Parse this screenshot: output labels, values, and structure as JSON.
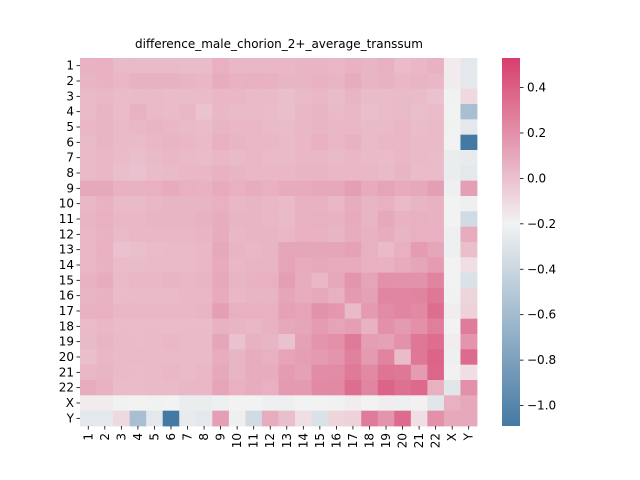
{
  "chart_data": {
    "type": "heatmap",
    "title": "difference_male_chorion_2+_average_transsum",
    "xlabel": "",
    "ylabel": "",
    "row_labels": [
      "1",
      "2",
      "3",
      "4",
      "5",
      "6",
      "7",
      "8",
      "9",
      "10",
      "11",
      "12",
      "13",
      "14",
      "15",
      "16",
      "17",
      "18",
      "19",
      "20",
      "21",
      "22",
      "X",
      "Y"
    ],
    "col_labels": [
      "1",
      "2",
      "3",
      "4",
      "5",
      "6",
      "7",
      "8",
      "9",
      "10",
      "11",
      "12",
      "13",
      "14",
      "15",
      "16",
      "17",
      "18",
      "19",
      "20",
      "21",
      "22",
      "X",
      "Y"
    ],
    "colorbar": {
      "vmin": -1.09,
      "vmax": 0.53,
      "center": -0.2,
      "ticks": [
        0.4,
        0.2,
        0.0,
        -0.2,
        -0.4,
        -0.6,
        -0.8,
        -1.0
      ],
      "tick_labels": [
        "0.4",
        "0.2",
        "0.0",
        "−0.2",
        "−0.4",
        "−0.6",
        "−0.8",
        "−1.0"
      ],
      "color_low": "#4479a4",
      "color_mid": "#f2f2f2",
      "color_high": "#d63f6d"
    },
    "values": [
      [
        0.06,
        0.07,
        0.03,
        0.03,
        0.03,
        0.03,
        0.02,
        0.02,
        0.07,
        0.04,
        0.04,
        0.04,
        0.04,
        0.05,
        0.05,
        0.04,
        0.06,
        0.05,
        0.07,
        0.02,
        0.04,
        0.06,
        -0.17,
        -0.27
      ],
      [
        0.05,
        0.06,
        0.04,
        0.06,
        0.06,
        0.06,
        0.05,
        0.04,
        0.08,
        0.06,
        0.07,
        0.06,
        0.05,
        0.05,
        0.06,
        0.05,
        0.08,
        0.05,
        0.06,
        0.04,
        0.05,
        0.04,
        -0.17,
        -0.27
      ],
      [
        0.03,
        0.04,
        0.02,
        0.03,
        0.03,
        0.02,
        0.02,
        0.02,
        0.04,
        0.04,
        0.03,
        0.03,
        0.01,
        0.03,
        0.04,
        0.02,
        0.05,
        0.02,
        0.02,
        0.03,
        0.02,
        0.0,
        -0.21,
        -0.1
      ],
      [
        0.03,
        0.05,
        0.02,
        0.06,
        0.03,
        0.02,
        0.04,
        -0.01,
        0.04,
        0.03,
        0.03,
        0.02,
        0.01,
        0.04,
        0.05,
        0.03,
        0.04,
        0.01,
        0.02,
        0.03,
        0.01,
        0.02,
        -0.2,
        -0.58
      ],
      [
        0.04,
        0.05,
        0.03,
        0.04,
        0.05,
        0.04,
        0.03,
        0.02,
        0.05,
        0.04,
        0.04,
        0.03,
        0.02,
        0.04,
        0.05,
        0.04,
        0.04,
        0.03,
        0.03,
        0.04,
        0.02,
        0.03,
        -0.21,
        -0.27
      ],
      [
        0.03,
        0.05,
        0.03,
        0.02,
        0.04,
        0.05,
        0.04,
        0.03,
        0.07,
        0.05,
        0.04,
        0.04,
        0.03,
        0.04,
        0.07,
        0.04,
        0.06,
        0.03,
        0.04,
        0.04,
        0.03,
        0.03,
        -0.2,
        -1.09
      ],
      [
        0.03,
        0.04,
        0.02,
        0.01,
        0.03,
        0.04,
        0.03,
        0.02,
        0.04,
        0.03,
        0.04,
        0.03,
        0.03,
        0.04,
        0.04,
        0.03,
        0.04,
        0.03,
        0.02,
        0.04,
        0.03,
        0.02,
        -0.24,
        -0.25
      ],
      [
        0.03,
        0.04,
        0.01,
        0.0,
        0.02,
        0.03,
        0.04,
        0.04,
        0.06,
        0.05,
        0.04,
        0.04,
        0.04,
        0.05,
        0.05,
        0.04,
        0.04,
        0.04,
        0.03,
        0.05,
        0.02,
        0.02,
        -0.24,
        -0.27
      ],
      [
        0.1,
        0.1,
        0.06,
        0.06,
        0.07,
        0.09,
        0.07,
        0.06,
        0.09,
        0.07,
        0.08,
        0.07,
        0.09,
        0.09,
        0.1,
        0.1,
        0.14,
        0.09,
        0.12,
        0.09,
        0.1,
        0.14,
        -0.22,
        0.14
      ],
      [
        0.04,
        0.06,
        0.03,
        0.03,
        0.04,
        0.05,
        0.05,
        0.05,
        0.07,
        0.04,
        0.05,
        0.04,
        0.03,
        0.06,
        0.06,
        0.04,
        0.08,
        0.05,
        0.07,
        0.03,
        0.05,
        0.06,
        -0.2,
        -0.22
      ],
      [
        0.05,
        0.07,
        0.04,
        0.04,
        0.05,
        0.05,
        0.05,
        0.06,
        0.08,
        0.05,
        0.05,
        0.04,
        0.03,
        0.06,
        0.07,
        0.06,
        0.09,
        0.05,
        0.1,
        0.06,
        0.07,
        0.06,
        -0.2,
        -0.37
      ],
      [
        0.04,
        0.06,
        0.03,
        0.04,
        0.04,
        0.04,
        0.04,
        0.05,
        0.08,
        0.04,
        0.05,
        0.05,
        0.04,
        0.07,
        0.06,
        0.05,
        0.08,
        0.06,
        0.08,
        0.05,
        0.07,
        0.07,
        -0.22,
        0.08
      ],
      [
        0.04,
        0.07,
        0.0,
        0.01,
        0.02,
        0.03,
        0.03,
        0.04,
        0.1,
        0.05,
        0.04,
        0.05,
        0.11,
        0.11,
        0.11,
        0.11,
        0.13,
        0.07,
        0.03,
        0.07,
        0.15,
        0.11,
        -0.22,
        0.01
      ],
      [
        0.04,
        0.06,
        0.02,
        0.02,
        0.03,
        0.03,
        0.03,
        0.04,
        0.09,
        0.04,
        0.05,
        0.05,
        0.12,
        0.09,
        0.1,
        0.09,
        0.09,
        0.07,
        0.06,
        0.09,
        0.11,
        0.15,
        -0.2,
        -0.12
      ],
      [
        0.06,
        0.08,
        0.03,
        0.04,
        0.04,
        0.05,
        0.04,
        0.05,
        0.1,
        0.05,
        0.06,
        0.07,
        0.14,
        0.08,
        0.04,
        0.1,
        0.18,
        0.12,
        0.2,
        0.19,
        0.19,
        0.25,
        -0.2,
        -0.32
      ],
      [
        0.05,
        0.06,
        0.02,
        0.03,
        0.03,
        0.03,
        0.04,
        0.04,
        0.09,
        0.04,
        0.05,
        0.05,
        0.11,
        0.08,
        0.1,
        0.07,
        0.16,
        0.13,
        0.24,
        0.24,
        0.25,
        0.3,
        -0.21,
        -0.08
      ],
      [
        0.06,
        0.07,
        0.04,
        0.04,
        0.04,
        0.04,
        0.04,
        0.05,
        0.14,
        0.07,
        0.07,
        0.07,
        0.13,
        0.12,
        0.19,
        0.17,
        0.03,
        0.16,
        0.22,
        0.24,
        0.23,
        0.34,
        -0.18,
        -0.07
      ],
      [
        0.02,
        0.04,
        0.02,
        0.02,
        0.02,
        0.02,
        0.02,
        0.02,
        0.06,
        0.05,
        0.04,
        0.06,
        0.1,
        0.11,
        0.15,
        0.12,
        0.14,
        0.06,
        0.2,
        0.16,
        0.2,
        0.27,
        -0.2,
        0.28
      ],
      [
        0.03,
        0.05,
        0.03,
        0.02,
        0.03,
        0.04,
        0.03,
        0.03,
        0.11,
        0.0,
        0.06,
        0.05,
        0.0,
        0.13,
        0.18,
        0.2,
        0.29,
        0.14,
        0.13,
        0.19,
        0.3,
        0.34,
        -0.18,
        0.18
      ],
      [
        0.01,
        0.04,
        0.03,
        0.03,
        0.03,
        0.03,
        0.03,
        0.03,
        0.08,
        0.05,
        0.08,
        0.07,
        0.12,
        0.14,
        0.16,
        0.18,
        0.26,
        0.16,
        0.25,
        0.02,
        0.3,
        0.38,
        -0.22,
        0.35
      ],
      [
        0.04,
        0.05,
        0.03,
        0.02,
        0.03,
        0.04,
        0.03,
        0.04,
        0.1,
        0.05,
        0.08,
        0.08,
        0.15,
        0.13,
        0.21,
        0.22,
        0.29,
        0.23,
        0.31,
        0.3,
        0.15,
        0.37,
        -0.19,
        -0.12
      ],
      [
        0.08,
        0.06,
        0.02,
        0.02,
        0.03,
        0.03,
        0.04,
        0.04,
        0.12,
        0.07,
        0.08,
        0.07,
        0.16,
        0.16,
        0.23,
        0.23,
        0.34,
        0.24,
        0.38,
        0.33,
        0.36,
        0.07,
        -0.29,
        0.2
      ],
      [
        -0.17,
        -0.17,
        -0.21,
        -0.2,
        -0.21,
        -0.2,
        -0.24,
        -0.24,
        -0.22,
        -0.2,
        -0.2,
        -0.22,
        -0.22,
        -0.2,
        -0.2,
        -0.21,
        -0.18,
        -0.2,
        -0.18,
        -0.22,
        -0.19,
        -0.29,
        0.07,
        0.1
      ],
      [
        -0.27,
        -0.27,
        -0.1,
        -0.58,
        -0.27,
        -1.09,
        -0.25,
        -0.27,
        0.14,
        -0.22,
        -0.37,
        0.08,
        0.01,
        -0.12,
        -0.32,
        -0.08,
        -0.07,
        0.28,
        0.18,
        0.35,
        -0.12,
        0.2,
        0.1,
        0.1
      ]
    ]
  }
}
